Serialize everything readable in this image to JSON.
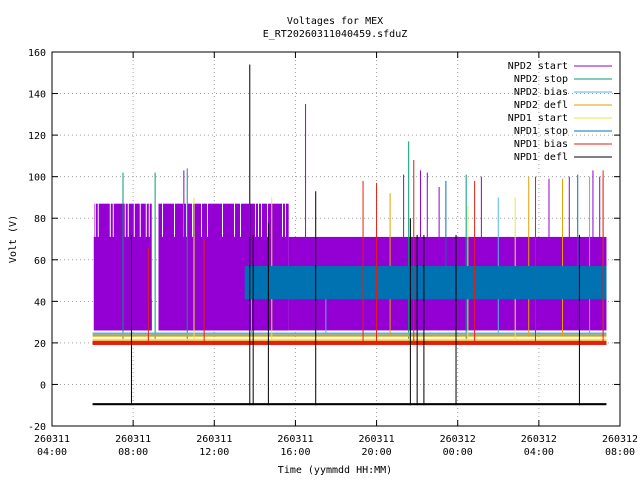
{
  "chart_data": {
    "type": "line",
    "title": "Voltages for MEX",
    "subtitle": "E_RT20260311040459.sfduZ",
    "xlabel": "Time (yymmdd HH:MM)",
    "ylabel": "Volt (V)",
    "xlim": [
      "2026-03-11 04:00",
      "2026-03-12 08:00"
    ],
    "ylim": [
      -20,
      160
    ],
    "yticks": [
      -20,
      0,
      20,
      40,
      60,
      80,
      100,
      120,
      140,
      160
    ],
    "xticks": [
      {
        "date": "260311",
        "time": "04:00",
        "x": "2026-03-11 04:00"
      },
      {
        "date": "260311",
        "time": "08:00",
        "x": "2026-03-11 08:00"
      },
      {
        "date": "260311",
        "time": "12:00",
        "x": "2026-03-11 12:00"
      },
      {
        "date": "260311",
        "time": "16:00",
        "x": "2026-03-11 16:00"
      },
      {
        "date": "260311",
        "time": "20:00",
        "x": "2026-03-11 20:00"
      },
      {
        "date": "260312",
        "time": "00:00",
        "x": "2026-03-12 00:00"
      },
      {
        "date": "260312",
        "time": "04:00",
        "x": "2026-03-12 04:00"
      },
      {
        "date": "260312",
        "time": "08:00",
        "x": "2026-03-12 08:00"
      }
    ],
    "grid": true,
    "legend_position": "top-right",
    "time_range": [
      "2026-03-11 06:00",
      "2026-03-12 07:20"
    ],
    "series": [
      {
        "name": "NPD2 start",
        "color": "#9400d3",
        "bands": [
          {
            "from": "2026-03-11 06:05",
            "to": "2026-03-11 08:55",
            "low": 26,
            "high": 87
          },
          {
            "from": "2026-03-11 09:15",
            "to": "2026-03-11 15:40",
            "low": 26,
            "high": 87
          },
          {
            "from": "2026-03-11 15:40",
            "to": "2026-03-12 07:20",
            "low": 26,
            "high": 71
          }
        ],
        "spikes": [
          {
            "x": "2026-03-11 06:05",
            "v": 71
          },
          {
            "x": "2026-03-11 10:30",
            "v": 103
          },
          {
            "x": "2026-03-11 16:30",
            "v": 135
          },
          {
            "x": "2026-03-11 21:20",
            "v": 101
          },
          {
            "x": "2026-03-11 22:10",
            "v": 103
          },
          {
            "x": "2026-03-11 22:30",
            "v": 102
          },
          {
            "x": "2026-03-11 23:05",
            "v": 95
          },
          {
            "x": "2026-03-12 01:10",
            "v": 100
          },
          {
            "x": "2026-03-12 04:30",
            "v": 99
          },
          {
            "x": "2026-03-12 05:30",
            "v": 100
          },
          {
            "x": "2026-03-12 06:40",
            "v": 103
          },
          {
            "x": "2026-03-12 07:00",
            "v": 100
          }
        ]
      },
      {
        "name": "NPD2 stop",
        "color": "#009e73",
        "spikes": [
          {
            "x": "2026-03-11 07:30",
            "v": 102
          },
          {
            "x": "2026-03-11 09:05",
            "v": 102
          },
          {
            "x": "2026-03-11 10:40",
            "v": 104
          },
          {
            "x": "2026-03-11 21:35",
            "v": 117
          },
          {
            "x": "2026-03-12 00:25",
            "v": 101
          }
        ]
      },
      {
        "name": "NPD2 bias",
        "color": "#56b4e9",
        "bands": [
          {
            "from": "2026-03-11 06:00",
            "to": "2026-03-12 07:20",
            "low": 24,
            "high": 25
          }
        ],
        "spikes": [
          {
            "x": "2026-03-11 13:50",
            "v": 54
          },
          {
            "x": "2026-03-11 17:30",
            "v": 50
          },
          {
            "x": "2026-03-12 02:00",
            "v": 90
          },
          {
            "x": "2026-03-12 06:30",
            "v": 100
          }
        ]
      },
      {
        "name": "NPD2 defl",
        "color": "#e69f00",
        "bands": [
          {
            "from": "2026-03-11 06:00",
            "to": "2026-03-12 07:20",
            "low": 23,
            "high": 24
          }
        ],
        "spikes": [
          {
            "x": "2026-03-11 20:40",
            "v": 92
          },
          {
            "x": "2026-03-12 03:30",
            "v": 100
          },
          {
            "x": "2026-03-12 05:10",
            "v": 99
          },
          {
            "x": "2026-03-12 07:10",
            "v": 99
          }
        ]
      },
      {
        "name": "NPD1 start",
        "color": "#f0e442",
        "bands": [
          {
            "from": "2026-03-11 06:00",
            "to": "2026-03-12 07:20",
            "low": 21,
            "high": 22
          }
        ],
        "spikes": [
          {
            "x": "2026-03-11 11:00",
            "v": 90
          },
          {
            "x": "2026-03-11 14:50",
            "v": 90
          },
          {
            "x": "2026-03-12 00:30",
            "v": 86
          },
          {
            "x": "2026-03-12 02:50",
            "v": 90
          }
        ]
      },
      {
        "name": "NPD1 stop",
        "color": "#0072b2",
        "bands": [
          {
            "from": "2026-03-11 13:30",
            "to": "2026-03-12 07:20",
            "low": 41,
            "high": 57
          }
        ],
        "spikes": [
          {
            "x": "2026-03-11 23:25",
            "v": 98
          },
          {
            "x": "2026-03-12 05:55",
            "v": 101
          }
        ]
      },
      {
        "name": "NPD1 bias",
        "color": "#e51e10",
        "bands": [
          {
            "from": "2026-03-11 06:00",
            "to": "2026-03-12 07:20",
            "low": 19,
            "high": 21
          }
        ],
        "spikes": [
          {
            "x": "2026-03-11 08:45",
            "v": 66
          },
          {
            "x": "2026-03-11 11:30",
            "v": 70
          },
          {
            "x": "2026-03-11 19:20",
            "v": 98
          },
          {
            "x": "2026-03-11 20:00",
            "v": 97
          },
          {
            "x": "2026-03-11 21:50",
            "v": 108
          },
          {
            "x": "2026-03-12 00:50",
            "v": 98
          },
          {
            "x": "2026-03-12 03:50",
            "v": 100
          },
          {
            "x": "2026-03-12 07:10",
            "v": 103
          }
        ]
      },
      {
        "name": "NPD1 defl",
        "color": "#000000",
        "bands": [
          {
            "from": "2026-03-11 06:00",
            "to": "2026-03-12 07:20",
            "low": -10,
            "high": -9
          }
        ],
        "spikes": [
          {
            "x": "2026-03-11 07:55",
            "v": 72
          },
          {
            "x": "2026-03-11 13:45",
            "v": 154
          },
          {
            "x": "2026-03-11 13:55",
            "v": 72
          },
          {
            "x": "2026-03-11 14:40",
            "v": 78
          },
          {
            "x": "2026-03-11 17:00",
            "v": 93
          },
          {
            "x": "2026-03-11 21:40",
            "v": 80
          },
          {
            "x": "2026-03-11 22:00",
            "v": 72
          },
          {
            "x": "2026-03-11 22:20",
            "v": 72
          },
          {
            "x": "2026-03-11 23:55",
            "v": 72
          },
          {
            "x": "2026-03-12 06:00",
            "v": 72
          }
        ]
      }
    ]
  }
}
